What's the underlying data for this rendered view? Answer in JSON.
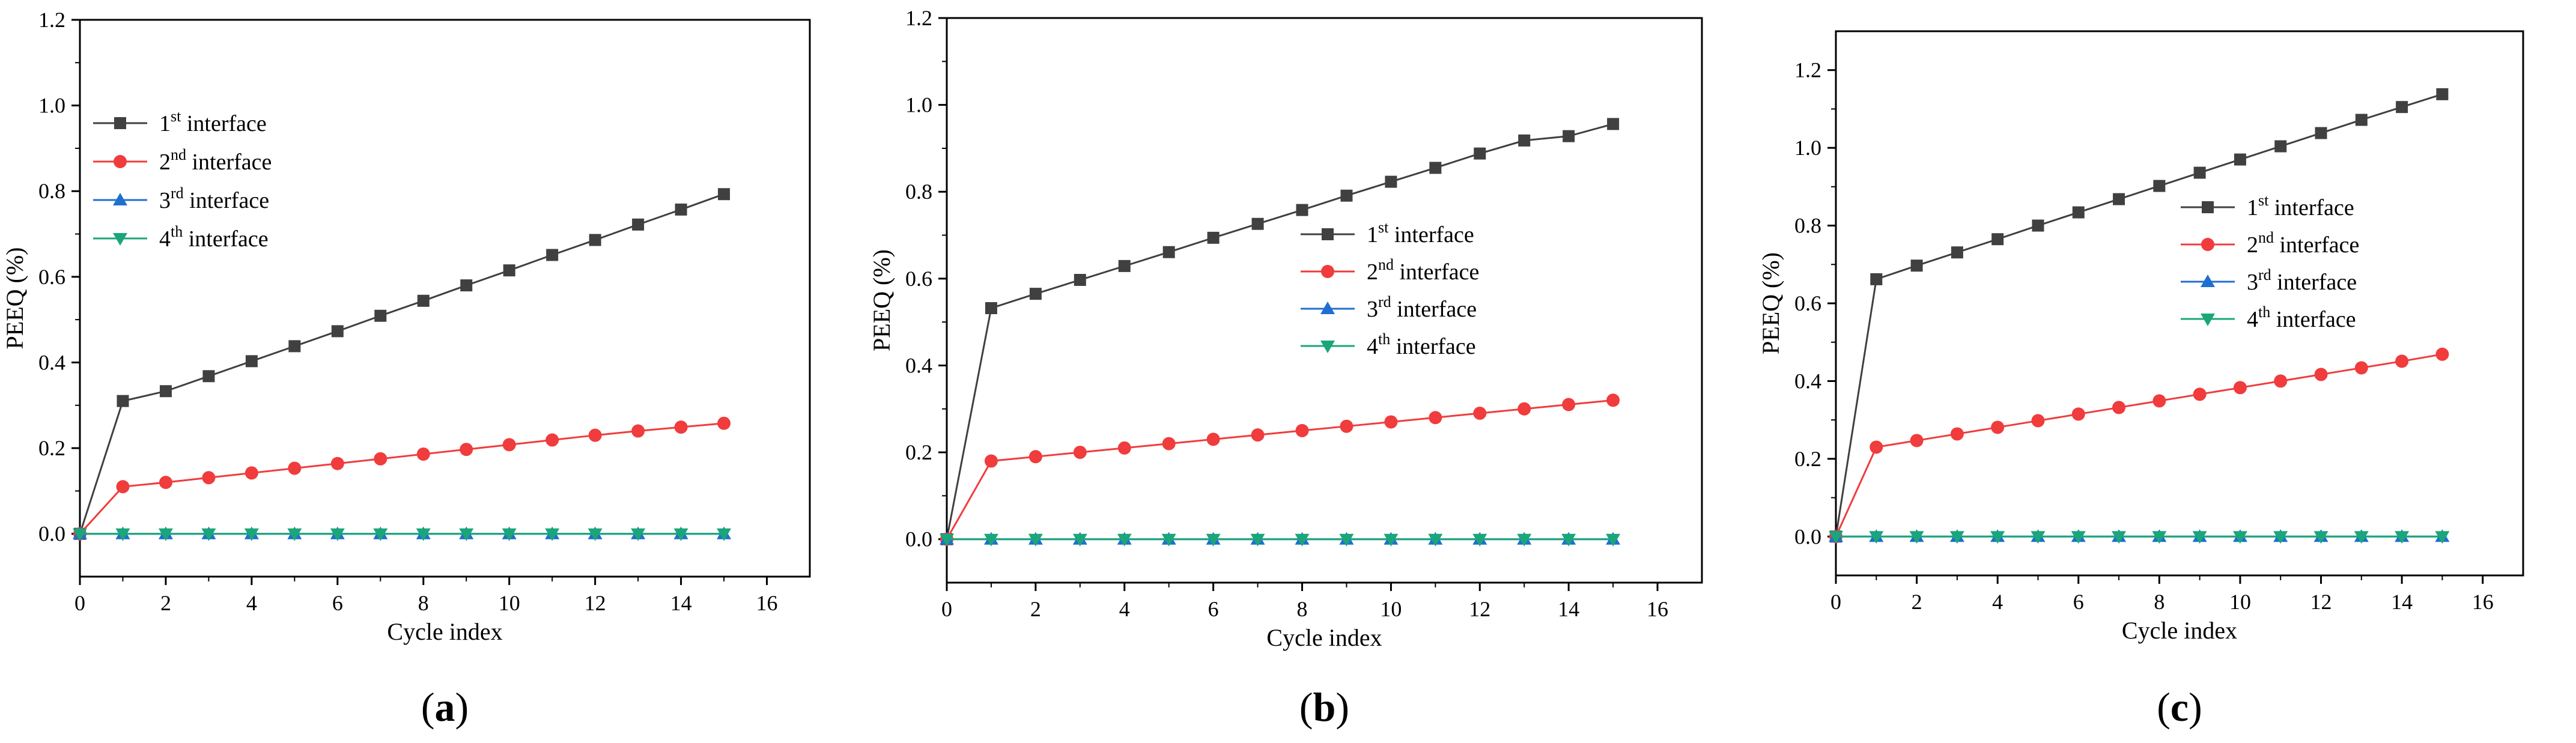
{
  "chart_data": [
    {
      "type": "line",
      "panel_label": "(a)",
      "panel_letter": "a",
      "xlabel": "Cycle index",
      "ylabel": "PEEQ (%)",
      "xlim": [
        0,
        17
      ],
      "ylim": [
        -0.1,
        1.2
      ],
      "x_ticks": [
        "0",
        "2",
        "4",
        "6",
        "8",
        "10",
        "12",
        "14",
        "16"
      ],
      "y_ticks": [
        "0.0",
        "0.2",
        "0.4",
        "0.6",
        "0.8",
        "1.0",
        "1.2"
      ],
      "legend_position": "upper-left",
      "x": [
        0,
        1,
        2,
        3,
        4,
        5,
        6,
        7,
        8,
        9,
        10,
        11,
        12,
        13,
        14,
        15
      ],
      "series": [
        {
          "name": "1st interface",
          "legend_num": "1",
          "legend_sup": "st",
          "legend_rest": " interface",
          "color": "#404040",
          "marker": "square",
          "values": [
            0,
            0.31,
            0.333,
            0.368,
            0.403,
            0.438,
            0.473,
            0.509,
            0.544,
            0.58,
            0.615,
            0.651,
            0.686,
            0.722,
            0.757,
            0.793
          ]
        },
        {
          "name": "2nd interface",
          "legend_num": "2",
          "legend_sup": "nd",
          "legend_rest": " interface",
          "color": "#f03c3c",
          "marker": "circle",
          "values": [
            0,
            0.11,
            0.12,
            0.131,
            0.142,
            0.153,
            0.164,
            0.175,
            0.186,
            0.197,
            0.208,
            0.219,
            0.23,
            0.24,
            0.249,
            0.258
          ]
        },
        {
          "name": "3rd interface",
          "legend_num": "3",
          "legend_sup": "rd",
          "legend_rest": " interface",
          "color": "#1f6fd0",
          "marker": "triangle-up",
          "values": [
            0,
            0,
            0,
            0,
            0,
            0,
            0,
            0,
            0,
            0,
            0,
            0,
            0,
            0,
            0,
            0
          ]
        },
        {
          "name": "4th interface",
          "legend_num": "4",
          "legend_sup": "th",
          "legend_rest": " interface",
          "color": "#1aa67a",
          "marker": "triangle-down",
          "values": [
            0,
            0,
            0,
            0,
            0,
            0,
            0,
            0,
            0,
            0,
            0,
            0,
            0,
            0,
            0,
            0
          ]
        }
      ]
    },
    {
      "type": "line",
      "panel_label": "(b)",
      "panel_letter": "b",
      "xlabel": "Cycle index",
      "ylabel": "PEEQ (%)",
      "xlim": [
        0,
        17
      ],
      "ylim": [
        -0.1,
        1.2
      ],
      "x_ticks": [
        "0",
        "2",
        "4",
        "6",
        "8",
        "10",
        "12",
        "14",
        "16"
      ],
      "y_ticks": [
        "0.0",
        "0.2",
        "0.4",
        "0.6",
        "0.8",
        "1.0",
        "1.2"
      ],
      "legend_position": "center-right",
      "x": [
        0,
        1,
        2,
        3,
        4,
        5,
        6,
        7,
        8,
        9,
        10,
        11,
        12,
        13,
        14,
        15
      ],
      "series": [
        {
          "name": "1st interface",
          "legend_num": "1",
          "legend_sup": "st",
          "legend_rest": " interface",
          "color": "#404040",
          "marker": "square",
          "values": [
            0,
            0.532,
            0.565,
            0.597,
            0.629,
            0.661,
            0.694,
            0.726,
            0.758,
            0.791,
            0.823,
            0.855,
            0.888,
            0.918,
            0.928,
            0.956
          ]
        },
        {
          "name": "2nd interface",
          "legend_num": "2",
          "legend_sup": "nd",
          "legend_rest": " interface",
          "color": "#f03c3c",
          "marker": "circle",
          "values": [
            0,
            0.18,
            0.19,
            0.2,
            0.21,
            0.22,
            0.23,
            0.24,
            0.25,
            0.26,
            0.27,
            0.28,
            0.29,
            0.3,
            0.31,
            0.32
          ]
        },
        {
          "name": "3rd interface",
          "legend_num": "3",
          "legend_sup": "rd",
          "legend_rest": " interface",
          "color": "#1f6fd0",
          "marker": "triangle-up",
          "values": [
            0,
            0,
            0,
            0,
            0,
            0,
            0,
            0,
            0,
            0,
            0,
            0,
            0,
            0,
            0,
            0
          ]
        },
        {
          "name": "4th interface",
          "legend_num": "4",
          "legend_sup": "th",
          "legend_rest": " interface",
          "color": "#1aa67a",
          "marker": "triangle-down",
          "values": [
            0,
            0,
            0,
            0,
            0,
            0,
            0,
            0,
            0,
            0,
            0,
            0,
            0,
            0,
            0,
            0
          ]
        }
      ]
    },
    {
      "type": "line",
      "panel_label": "(c)",
      "panel_letter": "c",
      "xlabel": "Cycle index",
      "ylabel": "PEEQ (%)",
      "xlim": [
        0,
        17
      ],
      "ylim": [
        -0.1,
        1.3
      ],
      "x_ticks": [
        "0",
        "2",
        "4",
        "6",
        "8",
        "10",
        "12",
        "14",
        "16"
      ],
      "y_ticks": [
        "0.0",
        "0.2",
        "0.4",
        "0.6",
        "0.8",
        "1.0",
        "1.2"
      ],
      "legend_position": "center-right",
      "x": [
        0,
        1,
        2,
        3,
        4,
        5,
        6,
        7,
        8,
        9,
        10,
        11,
        12,
        13,
        14,
        15
      ],
      "series": [
        {
          "name": "1st interface",
          "legend_num": "1",
          "legend_sup": "st",
          "legend_rest": " interface",
          "color": "#404040",
          "marker": "square",
          "values": [
            0,
            0.662,
            0.697,
            0.731,
            0.765,
            0.8,
            0.834,
            0.868,
            0.902,
            0.936,
            0.97,
            1.004,
            1.038,
            1.072,
            1.105,
            1.138
          ]
        },
        {
          "name": "2nd interface",
          "legend_num": "2",
          "legend_sup": "nd",
          "legend_rest": " interface",
          "color": "#f03c3c",
          "marker": "circle",
          "values": [
            0,
            0.23,
            0.247,
            0.264,
            0.281,
            0.298,
            0.315,
            0.332,
            0.349,
            0.366,
            0.383,
            0.4,
            0.417,
            0.434,
            0.451,
            0.469
          ]
        },
        {
          "name": "3rd interface",
          "legend_num": "3",
          "legend_sup": "rd",
          "legend_rest": " interface",
          "color": "#1f6fd0",
          "marker": "triangle-up",
          "values": [
            0,
            0,
            0,
            0,
            0,
            0,
            0,
            0,
            0,
            0,
            0,
            0,
            0,
            0,
            0,
            0
          ]
        },
        {
          "name": "4th interface",
          "legend_num": "4",
          "legend_sup": "th",
          "legend_rest": " interface",
          "color": "#1aa67a",
          "marker": "triangle-down",
          "values": [
            0,
            0,
            0,
            0,
            0,
            0,
            0,
            0,
            0,
            0,
            0,
            0,
            0,
            0,
            0,
            0
          ]
        }
      ]
    }
  ]
}
